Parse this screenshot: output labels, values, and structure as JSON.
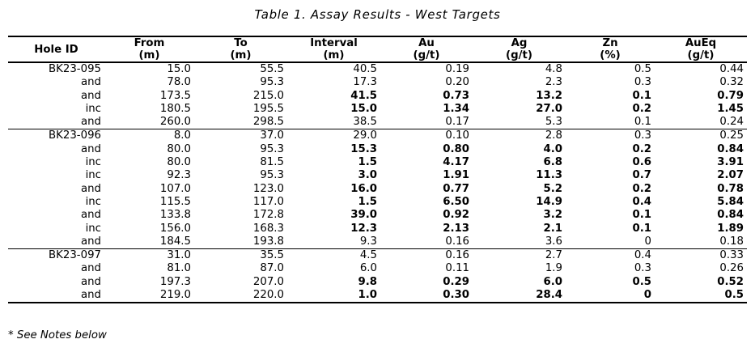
{
  "title": "Table 1. Assay Results - West Targets",
  "footnote": "* See Notes below",
  "table": {
    "columns": [
      {
        "key": "hole",
        "label": "Hole ID",
        "unit": ""
      },
      {
        "key": "from",
        "label": "From",
        "unit": "(m)"
      },
      {
        "key": "to",
        "label": "To",
        "unit": "(m)"
      },
      {
        "key": "interval",
        "label": "Interval",
        "unit": "(m)"
      },
      {
        "key": "au",
        "label": "Au",
        "unit": "(g/t)"
      },
      {
        "key": "ag",
        "label": "Ag",
        "unit": "(g/t)"
      },
      {
        "key": "zn",
        "label": "Zn",
        "unit": "(%)"
      },
      {
        "key": "aueq",
        "label": "AuEq",
        "unit": "(g/t)"
      }
    ],
    "groups": [
      {
        "rows": [
          {
            "hole": "BK23-095",
            "from": "15.0",
            "to": "55.5",
            "interval": "40.5",
            "au": "0.19",
            "ag": "4.8",
            "zn": "0.5",
            "aueq": "0.44",
            "bold": false
          },
          {
            "hole": "and",
            "from": "78.0",
            "to": "95.3",
            "interval": "17.3",
            "au": "0.20",
            "ag": "2.3",
            "zn": "0.3",
            "aueq": "0.32",
            "bold": false
          },
          {
            "hole": "and",
            "from": "173.5",
            "to": "215.0",
            "interval": "41.5",
            "au": "0.73",
            "ag": "13.2",
            "zn": "0.1",
            "aueq": "0.79",
            "bold": true
          },
          {
            "hole": "inc",
            "from": "180.5",
            "to": "195.5",
            "interval": "15.0",
            "au": "1.34",
            "ag": "27.0",
            "zn": "0.2",
            "aueq": "1.45",
            "bold": true
          },
          {
            "hole": "and",
            "from": "260.0",
            "to": "298.5",
            "interval": "38.5",
            "au": "0.17",
            "ag": "5.3",
            "zn": "0.1",
            "aueq": "0.24",
            "bold": false
          }
        ]
      },
      {
        "rows": [
          {
            "hole": "BK23-096",
            "from": "8.0",
            "to": "37.0",
            "interval": "29.0",
            "au": "0.10",
            "ag": "2.8",
            "zn": "0.3",
            "aueq": "0.25",
            "bold": false
          },
          {
            "hole": "and",
            "from": "80.0",
            "to": "95.3",
            "interval": "15.3",
            "au": "0.80",
            "ag": "4.0",
            "zn": "0.2",
            "aueq": "0.84",
            "bold": true
          },
          {
            "hole": "inc",
            "from": "80.0",
            "to": "81.5",
            "interval": "1.5",
            "au": "4.17",
            "ag": "6.8",
            "zn": "0.6",
            "aueq": "3.91",
            "bold": true
          },
          {
            "hole": "inc",
            "from": "92.3",
            "to": "95.3",
            "interval": "3.0",
            "au": "1.91",
            "ag": "11.3",
            "zn": "0.7",
            "aueq": "2.07",
            "bold": true
          },
          {
            "hole": "and",
            "from": "107.0",
            "to": "123.0",
            "interval": "16.0",
            "au": "0.77",
            "ag": "5.2",
            "zn": "0.2",
            "aueq": "0.78",
            "bold": true
          },
          {
            "hole": "inc",
            "from": "115.5",
            "to": "117.0",
            "interval": "1.5",
            "au": "6.50",
            "ag": "14.9",
            "zn": "0.4",
            "aueq": "5.84",
            "bold": true
          },
          {
            "hole": "and",
            "from": "133.8",
            "to": "172.8",
            "interval": "39.0",
            "au": "0.92",
            "ag": "3.2",
            "zn": "0.1",
            "aueq": "0.84",
            "bold": true
          },
          {
            "hole": "inc",
            "from": "156.0",
            "to": "168.3",
            "interval": "12.3",
            "au": "2.13",
            "ag": "2.1",
            "zn": "0.1",
            "aueq": "1.89",
            "bold": true
          },
          {
            "hole": "and",
            "from": "184.5",
            "to": "193.8",
            "interval": "9.3",
            "au": "0.16",
            "ag": "3.6",
            "zn": "0",
            "aueq": "0.18",
            "bold": false
          }
        ]
      },
      {
        "rows": [
          {
            "hole": "BK23-097",
            "from": "31.0",
            "to": "35.5",
            "interval": "4.5",
            "au": "0.16",
            "ag": "2.7",
            "zn": "0.4",
            "aueq": "0.33",
            "bold": false
          },
          {
            "hole": "and",
            "from": "81.0",
            "to": "87.0",
            "interval": "6.0",
            "au": "0.11",
            "ag": "1.9",
            "zn": "0.3",
            "aueq": "0.26",
            "bold": false
          },
          {
            "hole": "and",
            "from": "197.3",
            "to": "207.0",
            "interval": "9.8",
            "au": "0.29",
            "ag": "6.0",
            "zn": "0.5",
            "aueq": "0.52",
            "bold": true
          },
          {
            "hole": "and",
            "from": "219.0",
            "to": "220.0",
            "interval": "1.0",
            "au": "0.30",
            "ag": "28.4",
            "zn": "0",
            "aueq": "0.5",
            "bold": true
          }
        ]
      }
    ]
  }
}
